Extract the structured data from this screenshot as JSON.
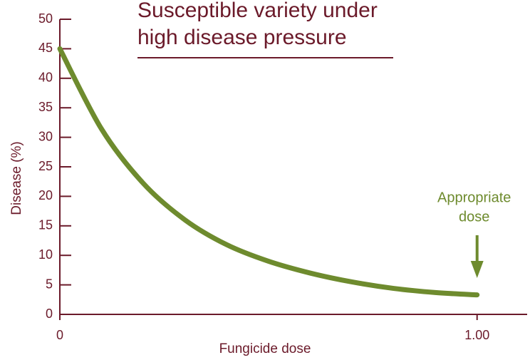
{
  "chart_data": {
    "type": "line",
    "title_lines": [
      "Susceptible variety under",
      "high disease pressure"
    ],
    "x_label": "Fungicide dose",
    "y_label": "Disease (%)",
    "x": [
      0,
      0.1,
      0.2,
      0.3,
      0.4,
      0.5,
      0.6,
      0.7,
      0.8,
      0.9,
      1.0
    ],
    "series": [
      {
        "name": "Disease",
        "color": "#6e8b2e",
        "values": [
          45,
          31.4,
          22.2,
          16.0,
          11.8,
          9.0,
          7.0,
          5.5,
          4.4,
          3.7,
          3.3
        ]
      }
    ],
    "xlim": [
      0,
      1.12
    ],
    "xticks": [
      0,
      {
        "value": 1,
        "label": "1.00"
      }
    ],
    "ylim": [
      0,
      50
    ],
    "yticks": [
      0,
      5,
      10,
      15,
      20,
      25,
      30,
      35,
      40,
      45,
      50
    ],
    "annotation": {
      "lines": [
        "Appropriate",
        "dose"
      ],
      "x": 1,
      "color": "#6e8b2e"
    },
    "axis_color": "#6b1a2a"
  }
}
